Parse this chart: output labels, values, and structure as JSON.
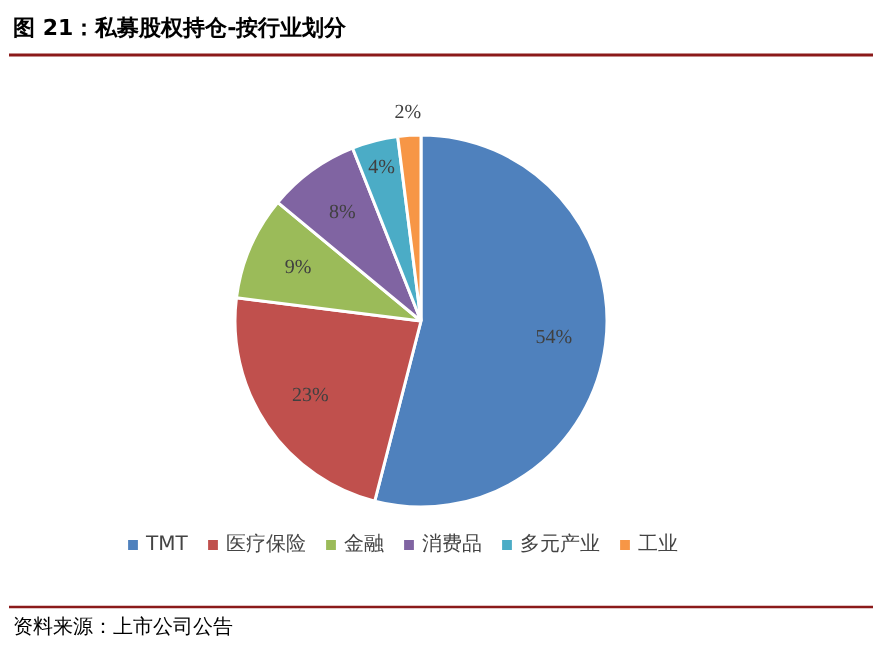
{
  "chart_data": {
    "type": "pie",
    "title": "图 21：私募股权持仓-按行业划分",
    "categories": [
      "TMT",
      "医疗保险",
      "金融",
      "消费品",
      "多元产业",
      "工业"
    ],
    "values": [
      54,
      23,
      9,
      8,
      4,
      2
    ],
    "value_labels": [
      "54%",
      "23%",
      "9%",
      "8%",
      "4%",
      "2%"
    ],
    "colors": [
      "#4f81bd",
      "#c0504d",
      "#9bbb59",
      "#8064a2",
      "#4bacc6",
      "#f79646"
    ],
    "legend": "bottom",
    "annotations": [
      "资料来源：上市公司公告"
    ]
  }
}
